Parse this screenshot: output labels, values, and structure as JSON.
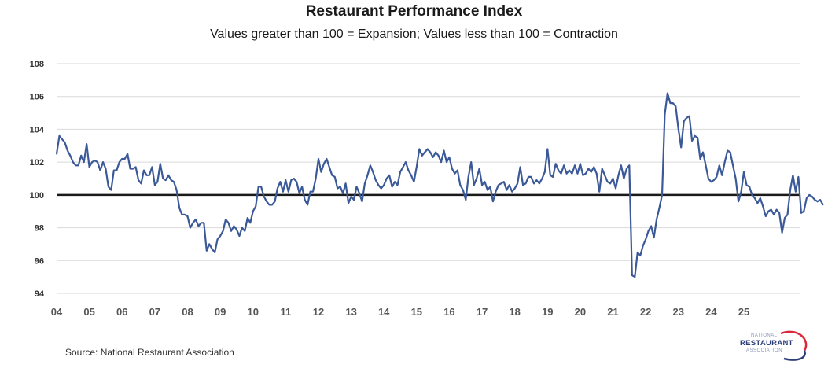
{
  "header": {
    "title": "Restaurant Performance Index",
    "subtitle": "Values greater than 100 = Expansion; Values less than 100 = Contraction"
  },
  "footer": {
    "source": "Source: National Restaurant Association"
  },
  "logo": {
    "line1": "NATIONAL",
    "line2": "RESTAURANT",
    "line3": "ASSOCIATION",
    "colors": {
      "text": "#2b3d7a",
      "swoosh_red": "#d9283a",
      "swoosh_blue": "#2b3d7a"
    }
  },
  "chart_data": {
    "type": "line",
    "title": "Restaurant Performance Index",
    "subtitle": "Values greater than 100 = Expansion; Values less than 100 = Contraction",
    "xlabel": "",
    "ylabel": "",
    "ylim": [
      94,
      108
    ],
    "yticks": [
      94,
      96,
      98,
      100,
      102,
      104,
      106,
      108
    ],
    "xlim": [
      2004,
      2025.75
    ],
    "xticks": [
      {
        "value": 2004,
        "label": "04"
      },
      {
        "value": 2005,
        "label": "05"
      },
      {
        "value": 2006,
        "label": "06"
      },
      {
        "value": 2007,
        "label": "07"
      },
      {
        "value": 2008,
        "label": "08"
      },
      {
        "value": 2009,
        "label": "09"
      },
      {
        "value": 2010,
        "label": "10"
      },
      {
        "value": 2011,
        "label": "11"
      },
      {
        "value": 2012,
        "label": "12"
      },
      {
        "value": 2013,
        "label": "13"
      },
      {
        "value": 2014,
        "label": "14"
      },
      {
        "value": 2015,
        "label": "15"
      },
      {
        "value": 2016,
        "label": "16"
      },
      {
        "value": 2017,
        "label": "17"
      },
      {
        "value": 2018,
        "label": "18"
      },
      {
        "value": 2019,
        "label": "19"
      },
      {
        "value": 2020,
        "label": "20"
      },
      {
        "value": 2021,
        "label": "21"
      },
      {
        "value": 2022,
        "label": "22"
      },
      {
        "value": 2023,
        "label": "23"
      },
      {
        "value": 2024,
        "label": "24"
      },
      {
        "value": 2025,
        "label": "25"
      }
    ],
    "grid": true,
    "reference_line": {
      "value": 100,
      "color": "#1a1a1a"
    },
    "series": [
      {
        "name": "Restaurant Performance Index",
        "color": "#3b5998",
        "start": "2004-01",
        "frequency": "monthly",
        "values": [
          102.5,
          103.6,
          103.4,
          103.2,
          102.7,
          102.4,
          102.0,
          101.8,
          101.8,
          102.4,
          102.0,
          103.1,
          101.7,
          102.0,
          102.1,
          102.0,
          101.5,
          102.0,
          101.6,
          100.5,
          100.3,
          101.5,
          101.5,
          102.0,
          102.2,
          102.2,
          102.5,
          101.6,
          101.6,
          101.7,
          100.9,
          100.7,
          101.5,
          101.2,
          101.2,
          101.7,
          100.6,
          100.8,
          101.9,
          101.0,
          100.9,
          101.2,
          100.9,
          100.8,
          100.3,
          99.2,
          98.8,
          98.8,
          98.7,
          98.0,
          98.3,
          98.5,
          98.1,
          98.3,
          98.3,
          96.6,
          97.0,
          96.7,
          96.5,
          97.3,
          97.5,
          97.8,
          98.5,
          98.3,
          97.8,
          98.1,
          97.9,
          97.5,
          98.0,
          97.8,
          98.6,
          98.3,
          99.0,
          99.3,
          100.5,
          100.5,
          99.9,
          99.6,
          99.4,
          99.4,
          99.6,
          100.4,
          100.8,
          100.2,
          100.9,
          100.2,
          100.9,
          101.0,
          100.8,
          100.1,
          100.5,
          99.7,
          99.4,
          100.2,
          100.2,
          101.0,
          102.2,
          101.4,
          101.9,
          102.2,
          101.7,
          101.2,
          101.1,
          100.4,
          100.5,
          100.1,
          100.7,
          99.5,
          99.9,
          99.7,
          100.5,
          100.1,
          99.6,
          100.7,
          101.2,
          101.8,
          101.4,
          100.9,
          100.6,
          100.4,
          100.6,
          101.0,
          101.2,
          100.5,
          100.8,
          100.6,
          101.4,
          101.7,
          102.0,
          101.5,
          101.2,
          100.8,
          101.7,
          102.8,
          102.4,
          102.6,
          102.8,
          102.6,
          102.3,
          102.6,
          102.4,
          102.0,
          102.7,
          102.0,
          102.3,
          101.6,
          101.3,
          101.5,
          100.6,
          100.3,
          99.7,
          101.1,
          102.0,
          100.6,
          101.0,
          101.6,
          100.6,
          100.8,
          100.3,
          100.5,
          99.6,
          100.2,
          100.6,
          100.7,
          100.8,
          100.3,
          100.6,
          100.2,
          100.4,
          100.7,
          101.7,
          100.6,
          100.7,
          101.1,
          101.1,
          100.7,
          100.9,
          100.7,
          101.0,
          101.4,
          102.8,
          101.2,
          101.1,
          101.9,
          101.5,
          101.3,
          101.8,
          101.3,
          101.5,
          101.3,
          101.8,
          101.3,
          101.9,
          101.2,
          101.3,
          101.6,
          101.4,
          101.7,
          101.3,
          100.2,
          101.6,
          101.2,
          100.8,
          100.7,
          101.0,
          100.4,
          101.2,
          101.8,
          101.0,
          101.6,
          101.8,
          95.1,
          95.0,
          96.5,
          96.3,
          96.9,
          97.3,
          97.8,
          98.1,
          97.4,
          98.5,
          99.2,
          100.0,
          104.9,
          106.2,
          105.6,
          105.6,
          105.4,
          104.0,
          102.9,
          104.5,
          104.7,
          104.8,
          103.3,
          103.6,
          103.5,
          102.2,
          102.6,
          101.8,
          101.0,
          100.8,
          100.9,
          101.1,
          101.8,
          101.2,
          102.0,
          102.7,
          102.6,
          101.8,
          101.0,
          99.6,
          100.2,
          101.4,
          100.6,
          100.5,
          100.0,
          99.8,
          99.5,
          99.8,
          99.3,
          98.7,
          99.0,
          99.1,
          98.8,
          99.1,
          98.9,
          97.7,
          98.6,
          98.8,
          100.3,
          101.2,
          100.2,
          101.1,
          98.9,
          99.0,
          99.8,
          100.0,
          99.9,
          99.7,
          99.6,
          99.7,
          99.4
        ]
      }
    ],
    "legend": "none"
  }
}
